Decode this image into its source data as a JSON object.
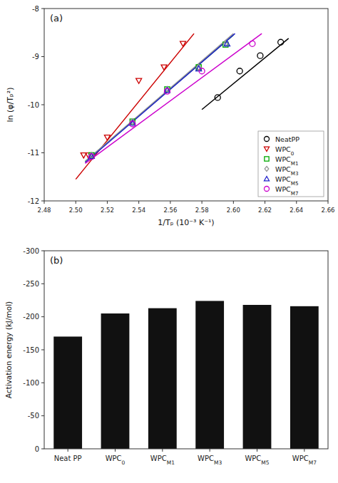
{
  "chart_data": [
    {
      "type": "scatter",
      "title": "(a)",
      "x_label": "1/Tₚ (10⁻³ K⁻¹)",
      "y_label": "ln (φ/Tₚ²)",
      "xlim": [
        2.48,
        2.66
      ],
      "ylim": [
        -12,
        -8
      ],
      "xticks": [
        2.48,
        {
          "value": 2.5,
          "label": "2.50"
        },
        2.52,
        2.54,
        2.56,
        2.58,
        {
          "value": 2.6,
          "label": "2.60"
        },
        2.62,
        2.64,
        2.66
      ],
      "yticks": [
        -12,
        -11,
        -10,
        -9,
        -8
      ],
      "legend": "lower right",
      "grid": false,
      "series": [
        {
          "name": "NeatPP",
          "color": "#000000",
          "marker": "circle",
          "x": [
            2.59,
            2.604,
            2.617,
            2.63
          ],
          "values": [
            -9.85,
            -9.3,
            -8.98,
            -8.7
          ],
          "fit": {
            "x": [
              2.58,
              2.635
            ],
            "values": [
              -10.1,
              -8.62
            ]
          }
        },
        {
          "name": "WPC0",
          "color": "#cc0000",
          "marker": "triangle-down",
          "x": [
            2.505,
            2.508,
            2.52,
            2.54,
            2.556,
            2.568
          ],
          "values": [
            -11.05,
            -11.05,
            -10.68,
            -9.5,
            -9.22,
            -8.73
          ],
          "fit": {
            "x": [
              2.5,
              2.575
            ],
            "values": [
              -11.55,
              -8.52
            ]
          }
        },
        {
          "name": "WPCM1",
          "color": "#00aa00",
          "marker": "square",
          "x": [
            2.51,
            2.536,
            2.558,
            2.578,
            2.595
          ],
          "values": [
            -11.05,
            -10.35,
            -9.68,
            -9.22,
            -8.75
          ],
          "fit": {
            "x": [
              2.506,
              2.6
            ],
            "values": [
              -11.18,
              -8.55
            ]
          }
        },
        {
          "name": "WPCM3",
          "color": "#999999",
          "marker": "diamond",
          "x": [
            2.51,
            2.536,
            2.558,
            2.578,
            2.595
          ],
          "values": [
            -11.05,
            -10.35,
            -9.68,
            -9.22,
            -8.73
          ],
          "fit": {
            "x": [
              2.506,
              2.6
            ],
            "values": [
              -11.18,
              -8.52
            ]
          }
        },
        {
          "name": "WPCM5",
          "color": "#2222cc",
          "marker": "triangle-up",
          "x": [
            2.51,
            2.536,
            2.558,
            2.578,
            2.596
          ],
          "values": [
            -11.07,
            -10.38,
            -9.7,
            -9.25,
            -8.73
          ],
          "fit": {
            "x": [
              2.506,
              2.601
            ],
            "values": [
              -11.2,
              -8.52
            ]
          }
        },
        {
          "name": "WPCM7",
          "color": "#cc00cc",
          "marker": "circle",
          "x": [
            2.51,
            2.536,
            2.558,
            2.58,
            2.612
          ],
          "values": [
            -11.08,
            -10.4,
            -9.72,
            -9.3,
            -8.73
          ],
          "fit": {
            "x": [
              2.506,
              2.618
            ],
            "values": [
              -11.22,
              -8.52
            ]
          }
        }
      ]
    },
    {
      "type": "bar",
      "title": "(b)",
      "y_label": "Activation energy (kJ/mol)",
      "categories": [
        "Neat PP",
        "WPC0",
        "WPCM1",
        "WPCM3",
        "WPCM5",
        "WPCM7"
      ],
      "values": [
        -170,
        -205,
        -213,
        -224,
        -218,
        -216
      ],
      "color": "#111111",
      "ylim": [
        0,
        -300
      ],
      "yticks": [
        -300,
        -250,
        -200,
        -150,
        -100,
        -50,
        0
      ],
      "grid": false
    }
  ]
}
